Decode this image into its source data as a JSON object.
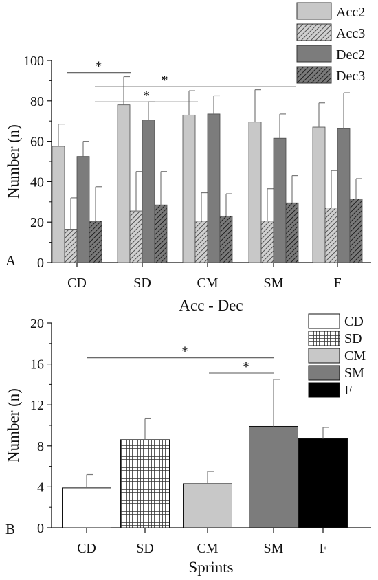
{
  "chart_data": [
    {
      "panel": "A",
      "type": "bar",
      "xlabel": "Acc - Dec",
      "ylabel": "Number (n)",
      "ylim": [
        0,
        100
      ],
      "yticks": [
        "0",
        "20",
        "40",
        "60",
        "80",
        "100"
      ],
      "categories": [
        "CD",
        "SD",
        "CM",
        "SM",
        "F"
      ],
      "legend_position": "top-right",
      "series": [
        {
          "name": "Acc2",
          "fill": "#c8c8c8",
          "hatch": false,
          "values": [
            57.5,
            78,
            73,
            69.5,
            67
          ],
          "errors": [
            11,
            14,
            12,
            16,
            12
          ]
        },
        {
          "name": "Acc3",
          "fill": "#d0d0d0",
          "hatch": true,
          "values": [
            16.5,
            25.5,
            20.5,
            20.5,
            27
          ],
          "errors": [
            15.5,
            19.5,
            14,
            16,
            18.5
          ]
        },
        {
          "name": "Dec2",
          "fill": "#7c7c7c",
          "hatch": false,
          "values": [
            52.5,
            70.5,
            73.5,
            61.5,
            66.5
          ],
          "errors": [
            7.5,
            9,
            9,
            12,
            17.5
          ]
        },
        {
          "name": "Dec3",
          "fill": "#7a7a7a",
          "hatch": true,
          "values": [
            20.5,
            28.5,
            23,
            29.5,
            31.5
          ],
          "errors": [
            17,
            16.5,
            11,
            13.5,
            10
          ]
        }
      ],
      "significance": [
        {
          "label": "*",
          "from": "CD",
          "to": "SD",
          "y": 94
        },
        {
          "label": "*",
          "from": "SD",
          "to": "CM",
          "y": 79.5
        },
        {
          "label": "*",
          "from": "SD",
          "to": "SM",
          "y": 87
        }
      ]
    },
    {
      "panel": "B",
      "type": "bar",
      "xlabel": "Sprints",
      "ylabel": "Number (n)",
      "ylim": [
        0,
        20
      ],
      "yticks": [
        "0",
        "4",
        "8",
        "12",
        "16",
        "20"
      ],
      "categories": [
        "CD",
        "SD",
        "CM",
        "SM",
        "F"
      ],
      "legend_position": "top-right",
      "series": [
        {
          "name": "",
          "values": [
            3.9,
            8.6,
            4.3,
            9.9,
            8.7
          ],
          "errors": [
            1.3,
            2.1,
            1.2,
            4.6,
            1.1
          ]
        }
      ],
      "legend": [
        {
          "name": "CD",
          "fill": "#ffffff",
          "pattern": "none"
        },
        {
          "name": "SD",
          "fill": "#ffffff",
          "pattern": "grid"
        },
        {
          "name": "CM",
          "fill": "#c8c8c8",
          "pattern": "none"
        },
        {
          "name": "SM",
          "fill": "#7c7c7c",
          "pattern": "none"
        },
        {
          "name": "F",
          "fill": "#000000",
          "pattern": "none"
        }
      ],
      "significance": [
        {
          "label": "*",
          "from": "CD",
          "to": "SM",
          "y": 16.6
        },
        {
          "label": "*",
          "from": "CM",
          "to": "SM",
          "y": 15.1
        }
      ]
    }
  ]
}
